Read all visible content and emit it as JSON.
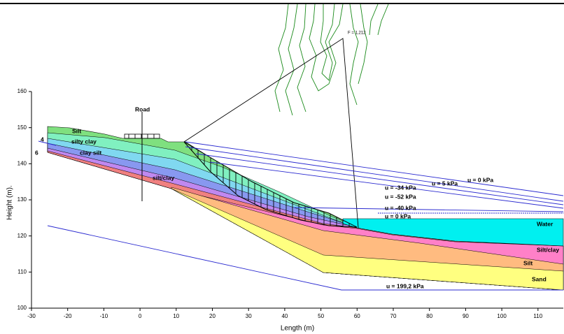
{
  "chart_data": {
    "type": "cross-section",
    "xlabel": "Length (m)",
    "ylabel": "Height (m).",
    "xlim": [
      -30,
      117
    ],
    "ylim": [
      100,
      160
    ],
    "xticks": [
      -30,
      -20,
      -10,
      0,
      10,
      20,
      30,
      40,
      50,
      60,
      70,
      80,
      90,
      100,
      110
    ],
    "yticks": [
      100,
      110,
      120,
      130,
      140,
      150,
      160
    ],
    "factor_of_safety": "F = 1,212",
    "road": "Road",
    "markers": [
      "4",
      "6"
    ],
    "layers": [
      "Silt",
      "silty clay",
      "clay silt",
      "silt/clay",
      "Water",
      "Silt/clay",
      "Silt",
      "Sand"
    ],
    "pore_pressures": [
      "u = 0 kPa",
      "u = 5 kPa",
      "u = -34 kPa",
      "u = -52 kPa",
      "u = -40 kPa",
      "u = 0 kPa",
      "u = 199,2 kPa"
    ]
  }
}
